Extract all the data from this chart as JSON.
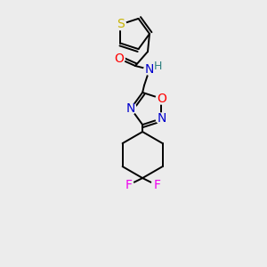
{
  "background_color": "#ececec",
  "bond_color": "#000000",
  "atom_colors": {
    "S": "#c8b400",
    "O_carbonyl": "#ff0000",
    "O_ring": "#ff0000",
    "N": "#0000cd",
    "H": "#2f8080",
    "F": "#ee00ee",
    "C": "#000000"
  },
  "lw": 1.4,
  "font_size": 10
}
